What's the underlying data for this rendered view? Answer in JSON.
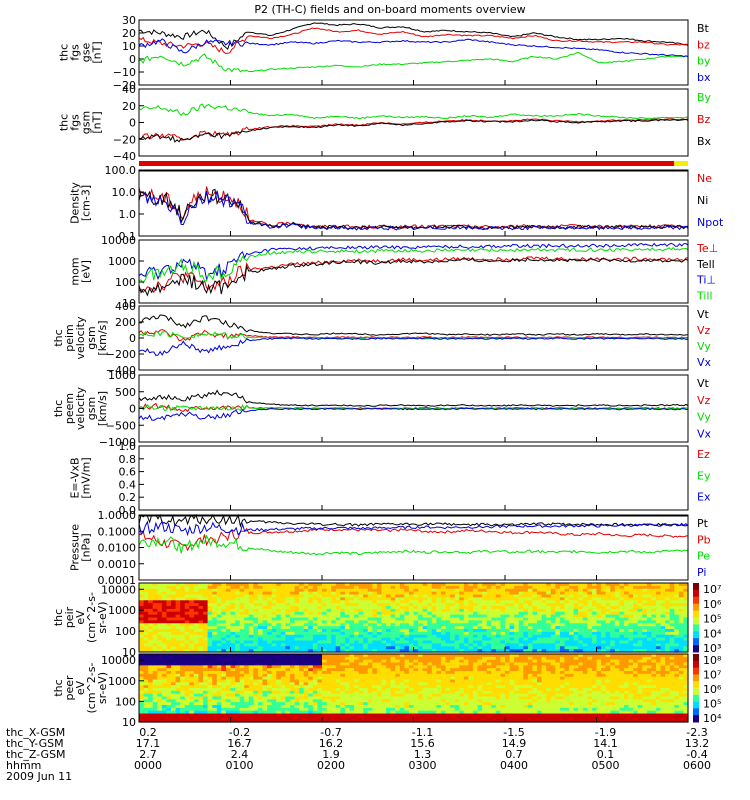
{
  "title": "P2 (TH-C) fields and on-board moments overview",
  "colors": {
    "black": "#000000",
    "red": "#e00000",
    "green": "#00dd00",
    "blue": "#0000dd",
    "yellow": "#f2f200"
  },
  "chart_data": [
    {
      "type": "line",
      "panel": "fgs_gse",
      "ylabel": [
        "thc",
        "fgs",
        "gse",
        "[nT]"
      ],
      "ylim": [
        -20,
        30
      ],
      "yticks": [
        "30",
        "20",
        "10",
        "0",
        "−10",
        "−20"
      ],
      "ytick_values": [
        30,
        20,
        10,
        0,
        -10,
        -20
      ],
      "series": [
        {
          "name": "Bt",
          "color": "black",
          "values": [
            22,
            20,
            17,
            22,
            9,
            21,
            18,
            23,
            28,
            26,
            27,
            24,
            25,
            21,
            22,
            21,
            20,
            17,
            20,
            17,
            15,
            15,
            16,
            14,
            13,
            11
          ]
        },
        {
          "name": "bz",
          "color": "red",
          "values": [
            15,
            12,
            10,
            12,
            5,
            18,
            16,
            19,
            24,
            21,
            22,
            19,
            21,
            17,
            19,
            18,
            18,
            16,
            18,
            14,
            14,
            13,
            13,
            13,
            11,
            11
          ]
        },
        {
          "name": "by",
          "color": "green",
          "values": [
            -2,
            3,
            -4,
            2,
            -8,
            -10,
            -8,
            -7,
            -6,
            -5,
            -6,
            -4,
            -4,
            -3,
            -2,
            -1,
            0,
            -2,
            2,
            0,
            5,
            -3,
            -2,
            0,
            2,
            2
          ]
        },
        {
          "name": "bx",
          "color": "blue",
          "values": [
            10,
            14,
            5,
            13,
            12,
            12,
            11,
            13,
            12,
            14,
            13,
            13,
            14,
            13,
            13,
            15,
            13,
            11,
            10,
            9,
            8,
            7,
            5,
            4,
            3,
            2
          ]
        }
      ]
    },
    {
      "type": "line",
      "panel": "fgs_gsm",
      "ylabel": [
        "thc",
        "fgs",
        "gsm",
        "[nT]"
      ],
      "ylim": [
        -40,
        40
      ],
      "yticks": [
        "40",
        "20",
        "0",
        "−20",
        "−40"
      ],
      "ytick_values": [
        40,
        20,
        0,
        -20,
        -40
      ],
      "series": [
        {
          "name": "By",
          "color": "green",
          "values": [
            15,
            18,
            10,
            20,
            18,
            12,
            8,
            10,
            5,
            8,
            5,
            8,
            6,
            7,
            5,
            8,
            6,
            10,
            8,
            8,
            10,
            8,
            6,
            5,
            6,
            6
          ]
        },
        {
          "name": "Bz",
          "color": "red",
          "values": [
            -18,
            -15,
            -20,
            -12,
            -15,
            -8,
            -5,
            -4,
            -5,
            -2,
            -3,
            0,
            -2,
            0,
            2,
            3,
            2,
            2,
            4,
            2,
            1,
            2,
            3,
            3,
            4,
            4
          ]
        },
        {
          "name": "Bx",
          "color": "black",
          "values": [
            -20,
            -16,
            -22,
            -14,
            -16,
            -10,
            -6,
            -5,
            -6,
            -3,
            -4,
            -1,
            -3,
            -1,
            1,
            2,
            1,
            1,
            3,
            1,
            0,
            1,
            2,
            2,
            3,
            3
          ]
        }
      ]
    },
    {
      "type": "line",
      "panel": "density",
      "scale": "log",
      "ylabel": [
        "Density",
        "[cm-3]"
      ],
      "ylim": [
        0.1,
        100
      ],
      "yticks": [
        "100.0",
        "10.0",
        "1.0",
        "0.1"
      ],
      "ytick_values": [
        100,
        10,
        1,
        0.1
      ],
      "series": [
        {
          "name": "Ne",
          "color": "red",
          "values": [
            8,
            6,
            0.6,
            8,
            7,
            0.5,
            0.3,
            0.4,
            0.25,
            0.28,
            0.25,
            0.27,
            0.26,
            0.27,
            0.28,
            0.27,
            0.26,
            0.27,
            0.28,
            0.27,
            0.28,
            0.27,
            0.28,
            0.27,
            0.28,
            0.28
          ]
        },
        {
          "name": "Ni",
          "color": "black",
          "values": [
            7,
            5,
            0.5,
            7,
            6,
            0.45,
            0.28,
            0.35,
            0.24,
            0.26,
            0.24,
            0.25,
            0.24,
            0.25,
            0.26,
            0.25,
            0.24,
            0.25,
            0.26,
            0.25,
            0.26,
            0.25,
            0.26,
            0.25,
            0.26,
            0.26
          ]
        },
        {
          "name": "Npot",
          "color": "blue",
          "values": [
            6,
            4,
            0.4,
            6,
            5,
            0.4,
            0.26,
            0.3,
            0.22,
            0.24,
            0.22,
            0.23,
            0.22,
            0.23,
            0.24,
            0.23,
            0.22,
            0.23,
            0.24,
            0.23,
            0.24,
            0.23,
            0.24,
            0.23,
            0.24,
            0.24
          ]
        }
      ]
    },
    {
      "type": "line",
      "panel": "temperature",
      "scale": "log",
      "ylabel": [
        "mom",
        "[eV]"
      ],
      "ylim": [
        10,
        10000
      ],
      "yticks": [
        "10000",
        "1000",
        "100",
        "10"
      ],
      "ytick_values": [
        10000,
        1000,
        100,
        10
      ],
      "series": [
        {
          "name": "Te⊥",
          "color": "red",
          "values": [
            60,
            70,
            200,
            60,
            80,
            400,
            500,
            700,
            800,
            1000,
            1100,
            1000,
            1200,
            1100,
            1200,
            1300,
            1200,
            1300,
            1400,
            1300,
            1200,
            1300,
            1200,
            1300,
            1200,
            1200
          ]
        },
        {
          "name": "Tell",
          "color": "black",
          "values": [
            40,
            50,
            150,
            45,
            60,
            300,
            400,
            600,
            700,
            900,
            900,
            800,
            1000,
            900,
            1000,
            1100,
            1000,
            1100,
            1200,
            1100,
            1000,
            1100,
            1000,
            1100,
            1000,
            1000
          ]
        },
        {
          "name": "Ti⊥",
          "color": "blue",
          "values": [
            200,
            300,
            800,
            250,
            400,
            2000,
            3500,
            3800,
            4000,
            4200,
            4300,
            4500,
            4400,
            4600,
            4800,
            4700,
            5000,
            5200,
            5100,
            5300,
            5500,
            5400,
            5600,
            5800,
            6000,
            6000
          ]
        },
        {
          "name": "Till",
          "color": "green",
          "values": [
            150,
            250,
            600,
            200,
            300,
            1500,
            2500,
            2700,
            2800,
            3000,
            2900,
            3000,
            3100,
            3000,
            3200,
            3100,
            3300,
            3200,
            3400,
            3300,
            3500,
            3400,
            3600,
            3500,
            3700,
            3700
          ]
        }
      ]
    },
    {
      "type": "line",
      "panel": "peim_velocity",
      "ylabel": [
        "thc",
        "peim",
        "velocity",
        "gsm",
        "[km/s]"
      ],
      "ylim": [
        -400,
        400
      ],
      "yticks": [
        "400",
        "200",
        "0",
        "−200",
        "−400"
      ],
      "ytick_values": [
        400,
        200,
        0,
        -200,
        -400
      ],
      "series": [
        {
          "name": "Vt",
          "color": "black",
          "values": [
            200,
            280,
            150,
            260,
            180,
            100,
            60,
            50,
            40,
            60,
            50,
            40,
            50,
            60,
            40,
            50,
            40,
            50,
            40,
            50,
            40,
            50,
            40,
            50,
            40,
            40
          ]
        },
        {
          "name": "Vz",
          "color": "red",
          "values": [
            60,
            80,
            -40,
            70,
            20,
            30,
            10,
            10,
            5,
            10,
            5,
            10,
            5,
            10,
            5,
            10,
            5,
            10,
            5,
            10,
            5,
            10,
            5,
            10,
            5,
            5
          ]
        },
        {
          "name": "Vy",
          "color": "green",
          "values": [
            40,
            60,
            20,
            50,
            30,
            10,
            5,
            0,
            5,
            -5,
            0,
            5,
            0,
            -5,
            0,
            5,
            0,
            -5,
            0,
            5,
            0,
            -5,
            0,
            5,
            0,
            0
          ]
        },
        {
          "name": "Vx",
          "color": "blue",
          "values": [
            -150,
            -200,
            -60,
            -180,
            -100,
            -30,
            -10,
            -5,
            -10,
            -5,
            -10,
            -5,
            -10,
            -5,
            -10,
            -5,
            -10,
            -5,
            -10,
            -5,
            -10,
            -5,
            -10,
            -5,
            -10,
            -10
          ]
        }
      ]
    },
    {
      "type": "line",
      "panel": "peem_velocity",
      "ylabel": [
        "thc",
        "peem",
        "velocity",
        "gsm",
        "[km/s]"
      ],
      "ylim": [
        -1000,
        1000
      ],
      "yticks": [
        "1000",
        "500",
        "0",
        "−500",
        "−1000"
      ],
      "ytick_values": [
        1000,
        500,
        0,
        -500,
        -1000
      ],
      "series": [
        {
          "name": "Vt",
          "color": "black",
          "values": [
            300,
            350,
            250,
            400,
            500,
            200,
            120,
            100,
            90,
            100,
            80,
            90,
            100,
            80,
            90,
            100,
            80,
            90,
            100,
            80,
            90,
            100,
            80,
            90,
            100,
            100
          ]
        },
        {
          "name": "Vz",
          "color": "red",
          "values": [
            50,
            80,
            -40,
            60,
            40,
            20,
            10,
            10,
            5,
            10,
            5,
            10,
            5,
            10,
            5,
            10,
            5,
            10,
            5,
            10,
            5,
            10,
            5,
            10,
            5,
            5
          ]
        },
        {
          "name": "Vy",
          "color": "green",
          "values": [
            40,
            30,
            20,
            50,
            30,
            10,
            5,
            0,
            5,
            -5,
            0,
            5,
            0,
            -5,
            0,
            5,
            0,
            -5,
            0,
            5,
            0,
            -5,
            0,
            5,
            0,
            0
          ]
        },
        {
          "name": "Vx",
          "color": "blue",
          "values": [
            -250,
            -300,
            -150,
            -280,
            -200,
            -60,
            -20,
            -10,
            -20,
            -10,
            -20,
            -10,
            -20,
            -10,
            -20,
            -10,
            -20,
            -10,
            -20,
            -10,
            -20,
            -10,
            -20,
            -10,
            -20,
            -20
          ]
        }
      ]
    },
    {
      "type": "line",
      "panel": "efield",
      "ylabel": [
        "E=-VxB",
        "[mV/m]"
      ],
      "ylim": [
        0,
        1
      ],
      "yticks": [
        "1.0",
        "0.8",
        "0.6",
        "0.4",
        "0.2",
        "0.0"
      ],
      "ytick_values": [
        1.0,
        0.8,
        0.6,
        0.4,
        0.2,
        0.0
      ],
      "series": [
        {
          "name": "Ez",
          "color": "red",
          "values": []
        },
        {
          "name": "Ey",
          "color": "green",
          "values": []
        },
        {
          "name": "Ex",
          "color": "blue",
          "values": []
        }
      ]
    },
    {
      "type": "line",
      "panel": "pressure",
      "scale": "log",
      "ylabel": [
        "Pressure",
        "[nPa]"
      ],
      "ylim": [
        0.0001,
        1
      ],
      "yticks": [
        "1.0000",
        "0.1000",
        "0.0100",
        "0.0010",
        "0.0001"
      ],
      "ytick_values": [
        1,
        0.1,
        0.01,
        0.001,
        0.0001
      ],
      "series": [
        {
          "name": "Pt",
          "color": "black",
          "values": [
            0.5,
            0.6,
            0.4,
            0.6,
            0.5,
            0.4,
            0.35,
            0.3,
            0.28,
            0.26,
            0.25,
            0.26,
            0.27,
            0.28,
            0.27,
            0.26,
            0.25,
            0.26,
            0.27,
            0.28,
            0.27,
            0.26,
            0.25,
            0.26,
            0.25,
            0.25
          ]
        },
        {
          "name": "Pb",
          "color": "red",
          "values": [
            0.05,
            0.02,
            0.01,
            0.03,
            0.05,
            0.08,
            0.09,
            0.1,
            0.12,
            0.13,
            0.12,
            0.11,
            0.12,
            0.1,
            0.09,
            0.11,
            0.1,
            0.08,
            0.09,
            0.07,
            0.06,
            0.07,
            0.05,
            0.06,
            0.05,
            0.05
          ]
        },
        {
          "name": "Pe",
          "color": "green",
          "values": [
            0.02,
            0.03,
            0.008,
            0.025,
            0.02,
            0.01,
            0.006,
            0.005,
            0.004,
            0.005,
            0.004,
            0.005,
            0.006,
            0.005,
            0.006,
            0.005,
            0.006,
            0.005,
            0.006,
            0.005,
            0.006,
            0.005,
            0.006,
            0.005,
            0.006,
            0.006
          ]
        },
        {
          "name": "Pi",
          "color": "blue",
          "values": [
            0.15,
            0.2,
            0.1,
            0.18,
            0.15,
            0.12,
            0.13,
            0.14,
            0.15,
            0.16,
            0.15,
            0.16,
            0.17,
            0.18,
            0.17,
            0.18,
            0.19,
            0.2,
            0.21,
            0.2,
            0.22,
            0.21,
            0.23,
            0.24,
            0.25,
            0.25
          ]
        }
      ]
    },
    {
      "type": "heatmap",
      "panel": "peir_eflux",
      "scale": "log",
      "ylabel": [
        "thc",
        "peir",
        "eV",
        "(cm^2-s-",
        "sr-eV)"
      ],
      "ylim": [
        10,
        20000
      ],
      "yticks": [
        "10000",
        "1000",
        "100",
        "10"
      ],
      "ytick_values": [
        10000,
        1000,
        100,
        10
      ],
      "colorbar": [
        "10⁷",
        "10⁶",
        "10⁵",
        "10⁴",
        "10³"
      ]
    },
    {
      "type": "heatmap",
      "panel": "peer_eflux",
      "scale": "log",
      "ylabel": [
        "thc",
        "peer",
        "eV",
        "(cm^2-s-",
        "sr-eV)"
      ],
      "ylim": [
        10,
        20000
      ],
      "yticks": [
        "10000",
        "1000",
        "100",
        "10"
      ],
      "ytick_values": [
        10000,
        1000,
        100,
        10
      ],
      "colorbar": [
        "10⁸",
        "10⁷",
        "10⁶",
        "10⁵",
        "10⁴"
      ]
    }
  ],
  "x_axis": {
    "rows": [
      {
        "label": "thc_X-GSM",
        "values": [
          "0.2",
          "-0.2",
          "-0.7",
          "-1.1",
          "-1.5",
          "-1.9",
          "-2.3"
        ]
      },
      {
        "label": "thc_Y-GSM",
        "values": [
          "17.1",
          "16.7",
          "16.2",
          "15.6",
          "14.9",
          "14.1",
          "13.2"
        ]
      },
      {
        "label": "thc_Z-GSM",
        "values": [
          "2.7",
          "2.4",
          "1.9",
          "1.3",
          "0.7",
          "0.1",
          "-0.4"
        ]
      },
      {
        "label": "hhmm",
        "values": [
          "0000",
          "0100",
          "0200",
          "0300",
          "0400",
          "0500",
          "0600"
        ]
      }
    ],
    "date": "2009 Jun 11"
  }
}
